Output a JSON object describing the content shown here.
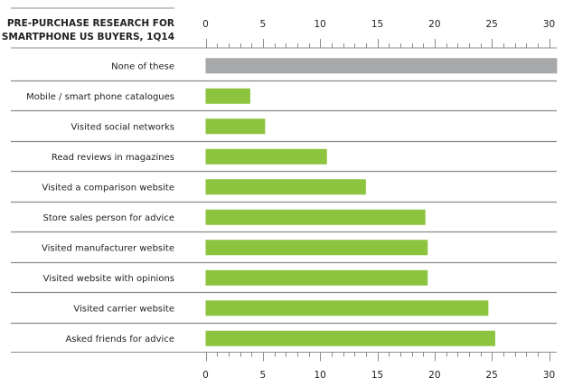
{
  "chart_data": {
    "type": "bar",
    "orientation": "horizontal",
    "title": [
      "PRE-PURCHASE RESEARCH FOR",
      "SMARTPHONE US BUYERS, 1Q14"
    ],
    "xlabel": "",
    "ylabel": "",
    "xlim": [
      0,
      30
    ],
    "major_ticks": [
      0,
      5,
      10,
      15,
      20,
      25,
      30
    ],
    "tick_labels": [
      "0",
      "5",
      "10",
      "15",
      "20",
      "25",
      "30"
    ],
    "minor_tick_step": 1,
    "axis_position": [
      "top",
      "bottom"
    ],
    "categories": [
      "None of these",
      "Mobile / smart phone catalogues",
      "Visited social networks",
      "Read reviews in magazines",
      "Visited a comparison website",
      "Store sales person for advice",
      "Visited manufacturer website",
      "Visited website with opinions",
      "Visited carrier website",
      "Asked friends for advice"
    ],
    "values": [
      30.7,
      3.9,
      5.2,
      10.6,
      14.0,
      19.2,
      19.4,
      19.4,
      24.7,
      25.3
    ],
    "bar_colors": [
      "#a7a8aa",
      "#8cc43f",
      "#8cc43f",
      "#8cc43f",
      "#8cc43f",
      "#8cc43f",
      "#8cc43f",
      "#8cc43f",
      "#8cc43f",
      "#8cc43f"
    ],
    "grid": false,
    "legend": "none"
  },
  "colors": {
    "highlight_bar": "#8cc43f",
    "neutral_bar": "#a7a8aa",
    "rule": "#8c8c8c",
    "text": "#222222"
  }
}
